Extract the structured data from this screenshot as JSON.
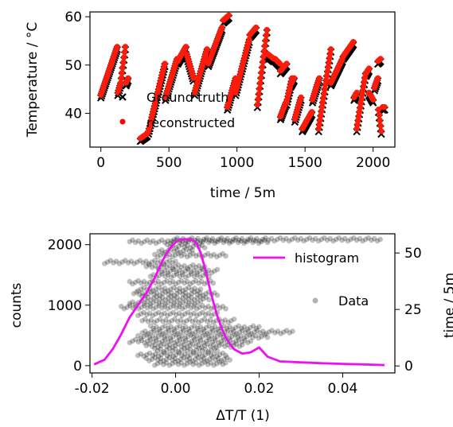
{
  "chart_data": [
    {
      "type": "scatter",
      "xlabel": "time / 5m",
      "ylabel": "Temperature / °C",
      "xlim": [
        -80,
        2160
      ],
      "ylim": [
        33,
        61
      ],
      "xticks": [
        "0",
        "500",
        "1000",
        "1500",
        "2000"
      ],
      "xtick_values": [
        0,
        500,
        1000,
        1500,
        2000
      ],
      "yticks": [
        "40",
        "50",
        "60"
      ],
      "ytick_values": [
        40,
        50,
        60
      ],
      "legend_position": "center",
      "series": [
        {
          "name": "Ground truth",
          "marker": "x",
          "color": "#000000"
        },
        {
          "name": "reconstructed",
          "marker": "dot",
          "color": "#ff0000"
        }
      ],
      "segments": [
        {
          "x": [
            0,
            120
          ],
          "y": [
            43.5,
            53.5
          ]
        },
        {
          "x": [
            125,
            145
          ],
          "y": [
            44,
            46
          ]
        },
        {
          "x": [
            150,
            180
          ],
          "y": [
            47,
            53.5
          ]
        },
        {
          "x": [
            185,
            200
          ],
          "y": [
            46,
            47
          ]
        },
        {
          "x": [
            290,
            340
          ],
          "y": [
            34.5,
            35.5
          ]
        },
        {
          "x": [
            350,
            470
          ],
          "y": [
            36,
            50
          ]
        },
        {
          "x": [
            475,
            560
          ],
          "y": [
            43,
            51
          ]
        },
        {
          "x": [
            565,
            625
          ],
          "y": [
            50.5,
            53.5
          ]
        },
        {
          "x": [
            630,
            680
          ],
          "y": [
            52,
            47
          ]
        },
        {
          "x": [
            690,
            780
          ],
          "y": [
            44,
            53
          ]
        },
        {
          "x": [
            790,
            890
          ],
          "y": [
            50,
            57.5
          ]
        },
        {
          "x": [
            900,
            940
          ],
          "y": [
            59,
            60
          ]
        },
        {
          "x": [
            930,
            990
          ],
          "y": [
            41,
            47
          ]
        },
        {
          "x": [
            990,
            1090
          ],
          "y": [
            44,
            55
          ]
        },
        {
          "x": [
            1095,
            1140
          ],
          "y": [
            56,
            57.5
          ]
        },
        {
          "x": [
            1150,
            1220
          ],
          "y": [
            41.5,
            57
          ]
        },
        {
          "x": [
            1225,
            1270
          ],
          "y": [
            52,
            51
          ]
        },
        {
          "x": [
            1280,
            1315
          ],
          "y": [
            51,
            50
          ]
        },
        {
          "x": [
            1320,
            1365
          ],
          "y": [
            48.5,
            50
          ]
        },
        {
          "x": [
            1320,
            1360
          ],
          "y": [
            39,
            42
          ]
        },
        {
          "x": [
            1365,
            1405
          ],
          "y": [
            42,
            47
          ]
        },
        {
          "x": [
            1400,
            1420
          ],
          "y": [
            46,
            47
          ]
        },
        {
          "x": [
            1425,
            1470
          ],
          "y": [
            38.5,
            43
          ]
        },
        {
          "x": [
            1480,
            1550
          ],
          "y": [
            36.5,
            40
          ]
        },
        {
          "x": [
            1555,
            1605
          ],
          "y": [
            42.5,
            47
          ]
        },
        {
          "x": [
            1600,
            1690
          ],
          "y": [
            36.5,
            53
          ]
        },
        {
          "x": [
            1690,
            1775
          ],
          "y": [
            46,
            51
          ]
        },
        {
          "x": [
            1780,
            1855
          ],
          "y": [
            51.5,
            54.5
          ]
        },
        {
          "x": [
            1860,
            1880
          ],
          "y": [
            43,
            44
          ]
        },
        {
          "x": [
            1880,
            1945
          ],
          "y": [
            36.5,
            48
          ]
        },
        {
          "x": [
            1950,
            1970
          ],
          "y": [
            48,
            49
          ]
        },
        {
          "x": [
            1970,
            2000
          ],
          "y": [
            44,
            42.5
          ]
        },
        {
          "x": [
            2010,
            2035
          ],
          "y": [
            45,
            47
          ]
        },
        {
          "x": [
            2035,
            2055
          ],
          "y": [
            50.5,
            51
          ]
        },
        {
          "x": [
            2040,
            2060
          ],
          "y": [
            40.5,
            36
          ]
        },
        {
          "x": [
            2070,
            2085
          ],
          "y": [
            41,
            41
          ]
        }
      ]
    },
    {
      "type": "scatter",
      "xlabel": "ΔT/T (1)",
      "ylabel": "counts",
      "ylabel_right": "time / 5m",
      "xlim": [
        -0.0205,
        0.0525
      ],
      "ylim": [
        -120,
        2180
      ],
      "ylim_right": [
        -3.1,
        58.5
      ],
      "xticks": [
        "-0.02",
        "0.00",
        "0.02",
        "0.04"
      ],
      "xtick_values": [
        -0.02,
        0.0,
        0.02,
        0.04
      ],
      "yticks": [
        "0",
        "1000",
        "2000"
      ],
      "ytick_values": [
        0,
        1000,
        2000
      ],
      "yticks_right": [
        "0",
        "25",
        "50"
      ],
      "ytick_values_right": [
        0,
        25,
        50
      ],
      "legend_position": "right",
      "series": [
        {
          "name": "histogram",
          "type": "line",
          "color": "#ee11ee",
          "x": [
            -0.0195,
            -0.017,
            -0.015,
            -0.013,
            -0.011,
            -0.009,
            -0.007,
            -0.005,
            -0.003,
            -0.0015,
            0.0,
            0.001,
            0.002,
            0.003,
            0.004,
            0.005,
            0.006,
            0.007,
            0.008,
            0.009,
            0.01,
            0.011,
            0.012,
            0.013,
            0.014,
            0.016,
            0.018,
            0.02,
            0.022,
            0.025,
            0.03,
            0.035,
            0.04,
            0.045,
            0.05
          ],
          "y": [
            20,
            100,
            280,
            520,
            800,
            1000,
            1200,
            1450,
            1750,
            1930,
            2040,
            2080,
            2090,
            2090,
            2080,
            2020,
            1870,
            1620,
            1330,
            1060,
            820,
            620,
            470,
            360,
            270,
            200,
            220,
            300,
            150,
            70,
            55,
            40,
            30,
            20,
            10
          ]
        },
        {
          "name": "Data",
          "type": "scatter",
          "color": "#000000",
          "alpha": 0.25,
          "rows": [
            {
              "t": 1,
              "x0": -0.005,
              "x1": 0.012
            },
            {
              "t": 3,
              "x0": -0.007,
              "x1": 0.013
            },
            {
              "t": 5,
              "x0": -0.009,
              "x1": 0.012
            },
            {
              "t": 7,
              "x0": -0.005,
              "x1": 0.01
            },
            {
              "t": 9,
              "x0": -0.007,
              "x1": 0.016
            },
            {
              "t": 11,
              "x0": -0.011,
              "x1": 0.018
            },
            {
              "t": 13,
              "x0": -0.009,
              "x1": 0.022
            },
            {
              "t": 15,
              "x0": -0.008,
              "x1": 0.028
            },
            {
              "t": 17,
              "x0": -0.006,
              "x1": 0.02
            },
            {
              "t": 20,
              "x0": -0.008,
              "x1": 0.014
            },
            {
              "t": 23,
              "x0": -0.009,
              "x1": 0.01
            },
            {
              "t": 26,
              "x0": -0.013,
              "x1": 0.012
            },
            {
              "t": 28,
              "x0": -0.011,
              "x1": 0.006
            },
            {
              "t": 30,
              "x0": -0.008,
              "x1": 0.008
            },
            {
              "t": 32,
              "x0": -0.01,
              "x1": 0.01
            },
            {
              "t": 34,
              "x0": -0.009,
              "x1": 0.006
            },
            {
              "t": 37,
              "x0": -0.011,
              "x1": 0.009
            },
            {
              "t": 40,
              "x0": -0.006,
              "x1": 0.008
            },
            {
              "t": 42,
              "x0": -0.004,
              "x1": 0.01
            },
            {
              "t": 44,
              "x0": -0.007,
              "x1": 0.007
            },
            {
              "t": 46,
              "x0": -0.017,
              "x1": 0.0
            },
            {
              "t": 49,
              "x0": -0.005,
              "x1": 0.012
            },
            {
              "t": 51,
              "x0": -0.004,
              "x1": 0.004
            },
            {
              "t": 53,
              "x0": -0.002,
              "x1": 0.007
            },
            {
              "t": 55,
              "x0": -0.011,
              "x1": 0.022
            },
            {
              "t": 56,
              "x0": -0.001,
              "x1": 0.049
            }
          ]
        }
      ]
    }
  ]
}
